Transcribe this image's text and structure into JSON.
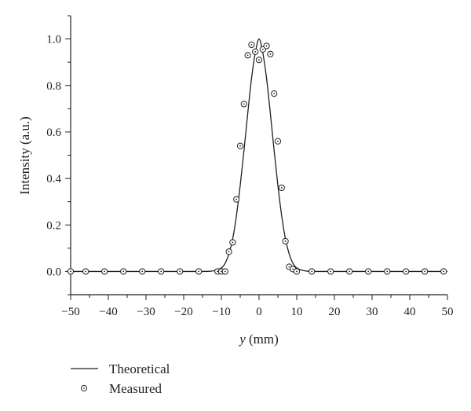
{
  "chart_data": {
    "type": "scatter",
    "xlabel_var": "y",
    "xlabel_unit": " (mm)",
    "ylabel": "Intensity (a.u.)",
    "xlim": [
      -50,
      50
    ],
    "ylim": [
      -0.1,
      1.1
    ],
    "x_ticks": [
      -50,
      -40,
      -30,
      -20,
      -10,
      0,
      10,
      20,
      30,
      40,
      50
    ],
    "x_tick_labels": [
      "−50",
      "−40",
      "−30",
      "−20",
      "−10",
      "0",
      "10",
      "20",
      "30",
      "40",
      "50"
    ],
    "y_ticks": [
      0.0,
      0.2,
      0.4,
      0.6,
      0.8,
      1.0
    ],
    "y_tick_labels": [
      "0.0",
      "0.2",
      "0.4",
      "0.6",
      "0.8",
      "1.0"
    ],
    "grid": false,
    "legend_position": "bottom-left, below plot",
    "series": [
      {
        "name": "Theoretical",
        "kind": "line",
        "x": [
          -50,
          -25,
          -15,
          -12,
          -10,
          -9,
          -8,
          -7,
          -6,
          -5,
          -4,
          -3,
          -2,
          -1,
          0,
          1,
          2,
          3,
          4,
          5,
          6,
          7,
          8,
          9,
          10,
          12,
          15,
          25,
          50
        ],
        "y": [
          0.0,
          0.0,
          0.0,
          0.003,
          0.015,
          0.035,
          0.075,
          0.14,
          0.24,
          0.37,
          0.52,
          0.68,
          0.83,
          0.94,
          1.0,
          0.94,
          0.83,
          0.68,
          0.52,
          0.37,
          0.24,
          0.14,
          0.075,
          0.035,
          0.015,
          0.003,
          0.0,
          0.0,
          0.0
        ]
      },
      {
        "name": "Measured",
        "kind": "scatter",
        "x": [
          -50,
          -46,
          -41,
          -36,
          -31,
          -26,
          -21,
          -16,
          -11,
          -10,
          -9,
          -8,
          -7,
          -6,
          -5,
          -4,
          -3,
          -2,
          -1,
          0,
          1,
          2,
          3,
          4,
          5,
          6,
          7,
          8,
          9,
          10,
          14,
          19,
          24,
          29,
          34,
          39,
          44,
          49
        ],
        "y": [
          0.0,
          0.0,
          0.0,
          0.0,
          0.0,
          0.0,
          0.0,
          0.0,
          0.0,
          0.0,
          0.0,
          0.085,
          0.125,
          0.31,
          0.54,
          0.72,
          0.93,
          0.975,
          0.945,
          0.91,
          0.955,
          0.97,
          0.935,
          0.765,
          0.56,
          0.36,
          0.13,
          0.02,
          0.01,
          0.0,
          0.0,
          0.0,
          0.0,
          0.0,
          0.0,
          0.0,
          0.0,
          0.0
        ]
      }
    ]
  }
}
